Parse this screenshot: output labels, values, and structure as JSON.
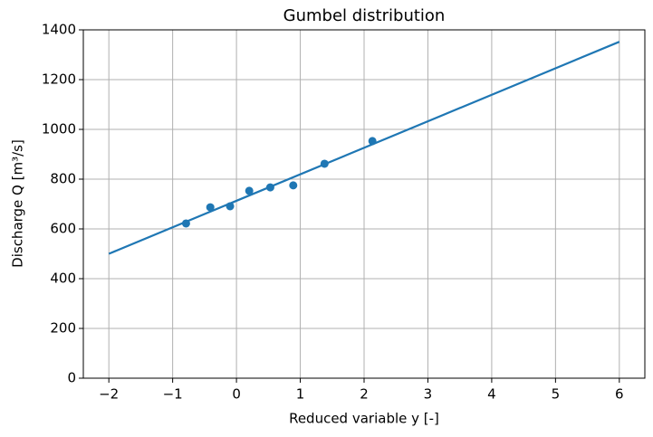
{
  "chart_data": {
    "type": "scatter",
    "title": "Gumbel distribution",
    "xlabel": "Reduced variable y [-]",
    "ylabel": "Discharge Q [m³/s]",
    "xlim": [
      -2.4,
      6.4
    ],
    "ylim": [
      0,
      1400
    ],
    "xticks": [
      {
        "value": -2,
        "label": "−2"
      },
      {
        "value": -1,
        "label": "−1"
      },
      0,
      1,
      2,
      3,
      4,
      5,
      6
    ],
    "yticks": [
      0,
      200,
      400,
      600,
      800,
      1000,
      1200,
      1400
    ],
    "grid": true,
    "series": [
      {
        "type": "scatter",
        "color": "#1f77b4",
        "x": [
          -0.79,
          -0.41,
          -0.1,
          0.2,
          0.53,
          0.89,
          1.38,
          2.13
        ],
        "values": [
          622,
          687,
          691,
          753,
          767,
          775,
          862,
          953
        ]
      },
      {
        "type": "line",
        "color": "#1f77b4",
        "x": [
          -2,
          6
        ],
        "values": [
          500,
          1352
        ]
      }
    ]
  }
}
